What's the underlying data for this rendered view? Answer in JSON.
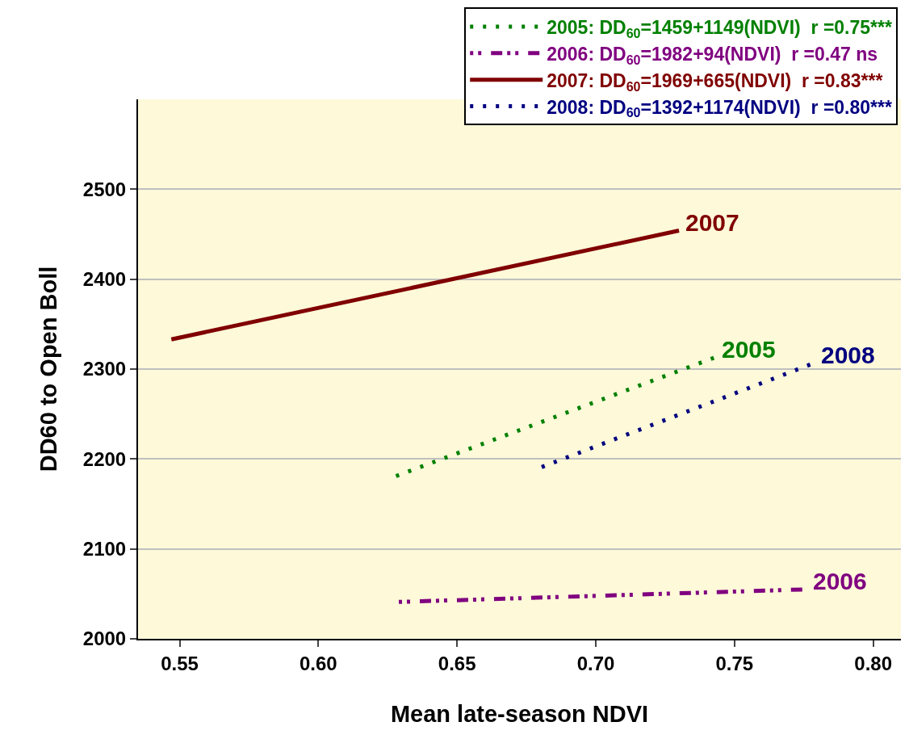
{
  "chart_data": {
    "type": "line",
    "xlabel": "Mean late-season NDVI",
    "ylabel": "DD60 to Open Boll",
    "xlim": [
      0.535,
      0.81
    ],
    "xticks": [
      {
        "value": 0.55,
        "label": "0.55"
      },
      {
        "value": 0.6,
        "label": "0.60"
      },
      {
        "value": 0.65,
        "label": "0.65"
      },
      {
        "value": 0.7,
        "label": "0.70"
      },
      {
        "value": 0.75,
        "label": "0.75"
      },
      {
        "value": 0.8,
        "label": "0.80"
      }
    ],
    "ylim": [
      2000,
      2600
    ],
    "yticks": [
      2000,
      2100,
      2200,
      2300,
      2400,
      2500
    ],
    "grid": "y",
    "legend": "top right",
    "marker": "none",
    "series": [
      {
        "name": "2005: DD$_{60}$=1459+1149(NDVI)  r =0.75***",
        "color": "#008000",
        "line_style": "dotted",
        "x": [
          0.628,
          0.743
        ],
        "values": [
          2181,
          2313
        ]
      },
      {
        "name": "2006: DD$_{60}$=1982+94(NDVI)  r =0.47 ns",
        "color": "#800080",
        "line_style": "dashed",
        "x": [
          0.629,
          0.776
        ],
        "values": [
          2041,
          2055
        ]
      },
      {
        "name": "2007: DD$_{60}$=1969+665(NDVI)  r =0.83***",
        "color": "#800000",
        "line_style": "solid",
        "x": [
          0.547,
          0.73
        ],
        "values": [
          2333,
          2454
        ]
      },
      {
        "name": "2008: DD$_{60}$=1392+1174(NDVI)  r =0.80***",
        "color": "#000080",
        "line_style": "dotted",
        "x": [
          0.6805,
          0.779
        ],
        "values": [
          2191,
          2307
        ]
      }
    ],
    "annotations": [
      {
        "text": "2005",
        "x": 0.743,
        "y": 2313
      },
      {
        "text": "2006",
        "x": 0.776,
        "y": 2055
      },
      {
        "text": "2007",
        "x": 0.73,
        "y": 2454
      },
      {
        "text": "2008",
        "x": 0.779,
        "y": 2307
      }
    ]
  }
}
